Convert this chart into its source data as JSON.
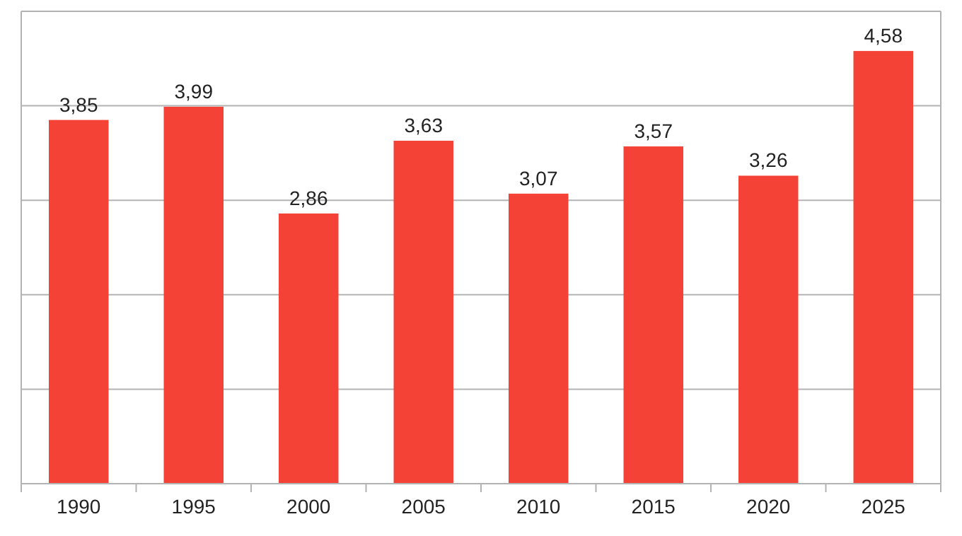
{
  "chart_data": {
    "type": "bar",
    "categories": [
      "1990",
      "1995",
      "2000",
      "2005",
      "2010",
      "2015",
      "2020",
      "2025"
    ],
    "values": [
      3.85,
      3.99,
      2.86,
      3.63,
      3.07,
      3.57,
      3.26,
      4.58
    ],
    "value_labels": [
      "3,85",
      "3,99",
      "2,86",
      "3,63",
      "3,07",
      "3,57",
      "3,26",
      "4,58"
    ],
    "color": "#f44336",
    "ylim": [
      0,
      5
    ],
    "yticks": [
      {
        "value": 0,
        "label": null
      },
      {
        "value": 1,
        "label": null
      },
      {
        "value": 2,
        "label": null
      },
      {
        "value": 3,
        "label": null
      },
      {
        "value": 4,
        "label": null
      },
      {
        "value": 5,
        "label": null
      }
    ],
    "grid": "y",
    "tick_labels": "x"
  }
}
